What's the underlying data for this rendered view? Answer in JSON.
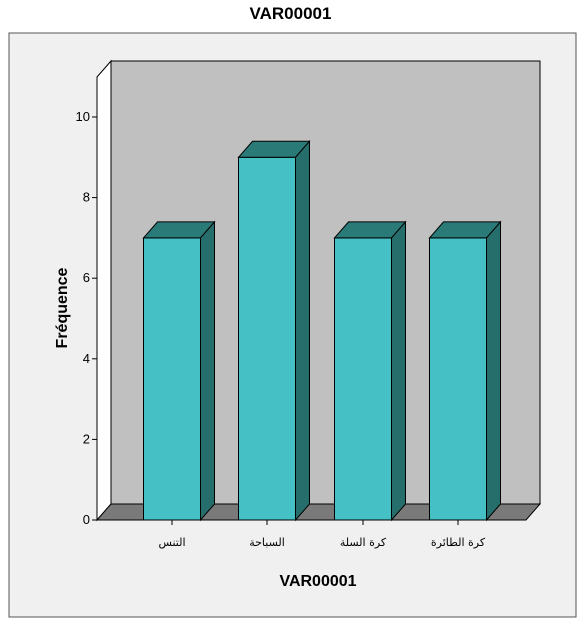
{
  "chart_data": {
    "type": "bar",
    "title": "VAR00001",
    "xlabel": "VAR00001",
    "ylabel": "Fréquence",
    "categories": [
      "التنس",
      "السباحة",
      "كرة السلة",
      "كرة الطائرة"
    ],
    "values": [
      7,
      9,
      7,
      7
    ],
    "ylim": [
      0,
      10
    ],
    "yticks": [
      "0",
      "2",
      "4",
      "6",
      "8",
      "10"
    ],
    "grid": false,
    "three_d": true
  },
  "colors": {
    "bar_front": "#45c1c5",
    "bar_top": "#2a7a78",
    "bar_side": "#256e6c",
    "plot_bg": "#c0c0c0",
    "floor": "#7a7a7a",
    "left_wall": "#ffffff",
    "outer_bg": "#f0f0f0"
  }
}
